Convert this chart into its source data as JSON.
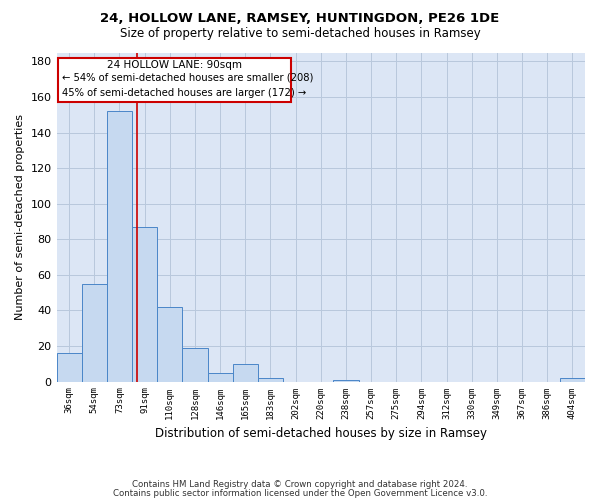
{
  "title1": "24, HOLLOW LANE, RAMSEY, HUNTINGDON, PE26 1DE",
  "title2": "Size of property relative to semi-detached houses in Ramsey",
  "xlabel": "Distribution of semi-detached houses by size in Ramsey",
  "ylabel": "Number of semi-detached properties",
  "categories": [
    "36sqm",
    "54sqm",
    "73sqm",
    "91sqm",
    "110sqm",
    "128sqm",
    "146sqm",
    "165sqm",
    "183sqm",
    "202sqm",
    "220sqm",
    "238sqm",
    "257sqm",
    "275sqm",
    "294sqm",
    "312sqm",
    "330sqm",
    "349sqm",
    "367sqm",
    "386sqm",
    "404sqm"
  ],
  "values": [
    16,
    55,
    152,
    87,
    42,
    19,
    5,
    10,
    2,
    0,
    0,
    1,
    0,
    0,
    0,
    0,
    0,
    0,
    0,
    0,
    2
  ],
  "bar_color": "#c6d9f0",
  "bar_edge_color": "#4a86c8",
  "property_line_color": "#cc0000",
  "annotation_title": "24 HOLLOW LANE: 90sqm",
  "annotation_line1": "← 54% of semi-detached houses are smaller (208)",
  "annotation_line2": "45% of semi-detached houses are larger (172) →",
  "annotation_box_color": "#cc0000",
  "ylim": [
    0,
    185
  ],
  "yticks": [
    0,
    20,
    40,
    60,
    80,
    100,
    120,
    140,
    160,
    180
  ],
  "footer1": "Contains HM Land Registry data © Crown copyright and database right 2024.",
  "footer2": "Contains public sector information licensed under the Open Government Licence v3.0.",
  "bg_color": "#ffffff",
  "ax_bg_color": "#dce6f5",
  "grid_color": "#b8c8dc"
}
